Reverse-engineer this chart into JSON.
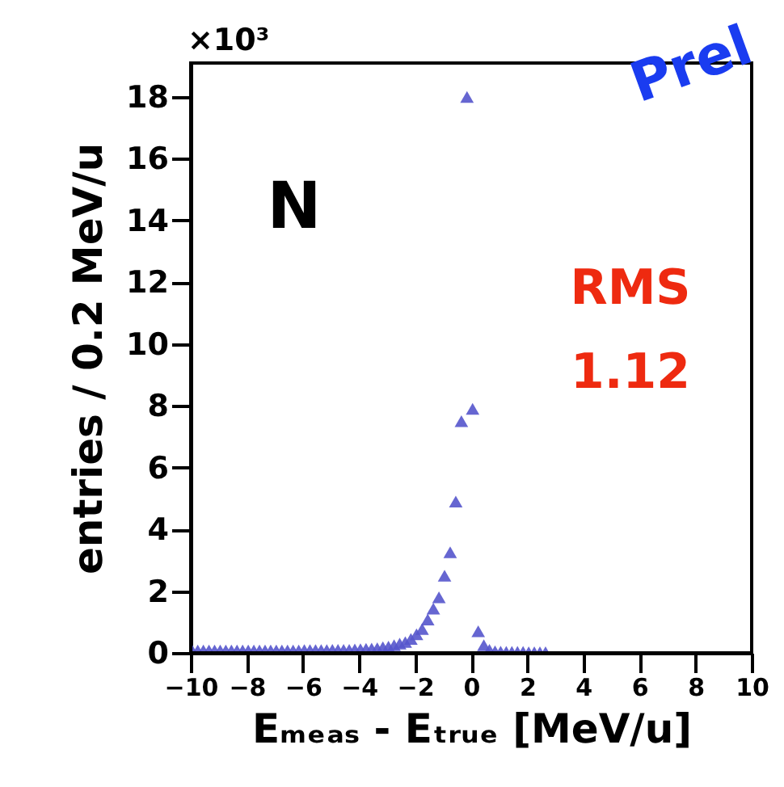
{
  "chart_data": {
    "type": "scatter",
    "xlabel": "Eₘₑₐₛ - Eₜᵣᵤₑ [MeV/u]",
    "ylabel": "entries / 0.2 MeV/u",
    "marker": "triangle",
    "grid": false,
    "xlim": [
      -10,
      10
    ],
    "xticks": [
      -10,
      -8,
      -6,
      -4,
      -2,
      0,
      2,
      4,
      6,
      8,
      10
    ],
    "ylim": [
      0,
      19.1
    ],
    "yticks": [
      0,
      2,
      4,
      6,
      8,
      10,
      12,
      14,
      16,
      18
    ],
    "x": [
      -9.95,
      -9.75,
      -9.55,
      -9.35,
      -9.15,
      -8.95,
      -8.75,
      -8.55,
      -8.35,
      -8.15,
      -7.95,
      -7.75,
      -7.55,
      -7.35,
      -7.15,
      -6.95,
      -6.75,
      -6.55,
      -6.35,
      -6.15,
      -5.95,
      -5.75,
      -5.55,
      -5.35,
      -5.15,
      -4.95,
      -4.75,
      -4.55,
      -4.35,
      -4.15,
      -3.95,
      -3.75,
      -3.55,
      -3.35,
      -3.15,
      -2.95,
      -2.75,
      -2.55,
      -2.35,
      -2.15,
      -1.95,
      -1.75,
      -1.55,
      -1.35,
      -1.15,
      -0.95,
      -0.75,
      -0.55,
      -0.35,
      -0.15,
      0.05,
      0.25,
      0.45,
      0.65,
      0.85,
      1.05,
      1.25,
      1.45,
      1.65,
      1.85,
      2.05,
      2.25,
      2.45,
      2.65
    ],
    "series": [
      {
        "color": "#5555cc",
        "values": [
          0.08,
          0.08,
          0.08,
          0.08,
          0.08,
          0.08,
          0.08,
          0.08,
          0.08,
          0.08,
          0.08,
          0.08,
          0.08,
          0.08,
          0.08,
          0.08,
          0.08,
          0.08,
          0.08,
          0.08,
          0.09,
          0.09,
          0.09,
          0.09,
          0.09,
          0.1,
          0.1,
          0.1,
          0.1,
          0.11,
          0.12,
          0.13,
          0.14,
          0.15,
          0.18,
          0.2,
          0.25,
          0.3,
          0.35,
          0.45,
          0.6,
          0.77,
          1.08,
          1.43,
          1.8,
          2.5,
          3.26,
          4.9,
          7.5,
          18.0,
          7.9,
          0.7,
          0.25,
          0.1,
          0.05,
          0.04,
          0.03,
          0.03,
          0.03,
          0.03,
          0.02,
          0.02,
          0.02,
          0.02
        ]
      }
    ],
    "annotations": [
      "×10³",
      "N",
      "RMS",
      "1.12",
      "Prel"
    ]
  }
}
